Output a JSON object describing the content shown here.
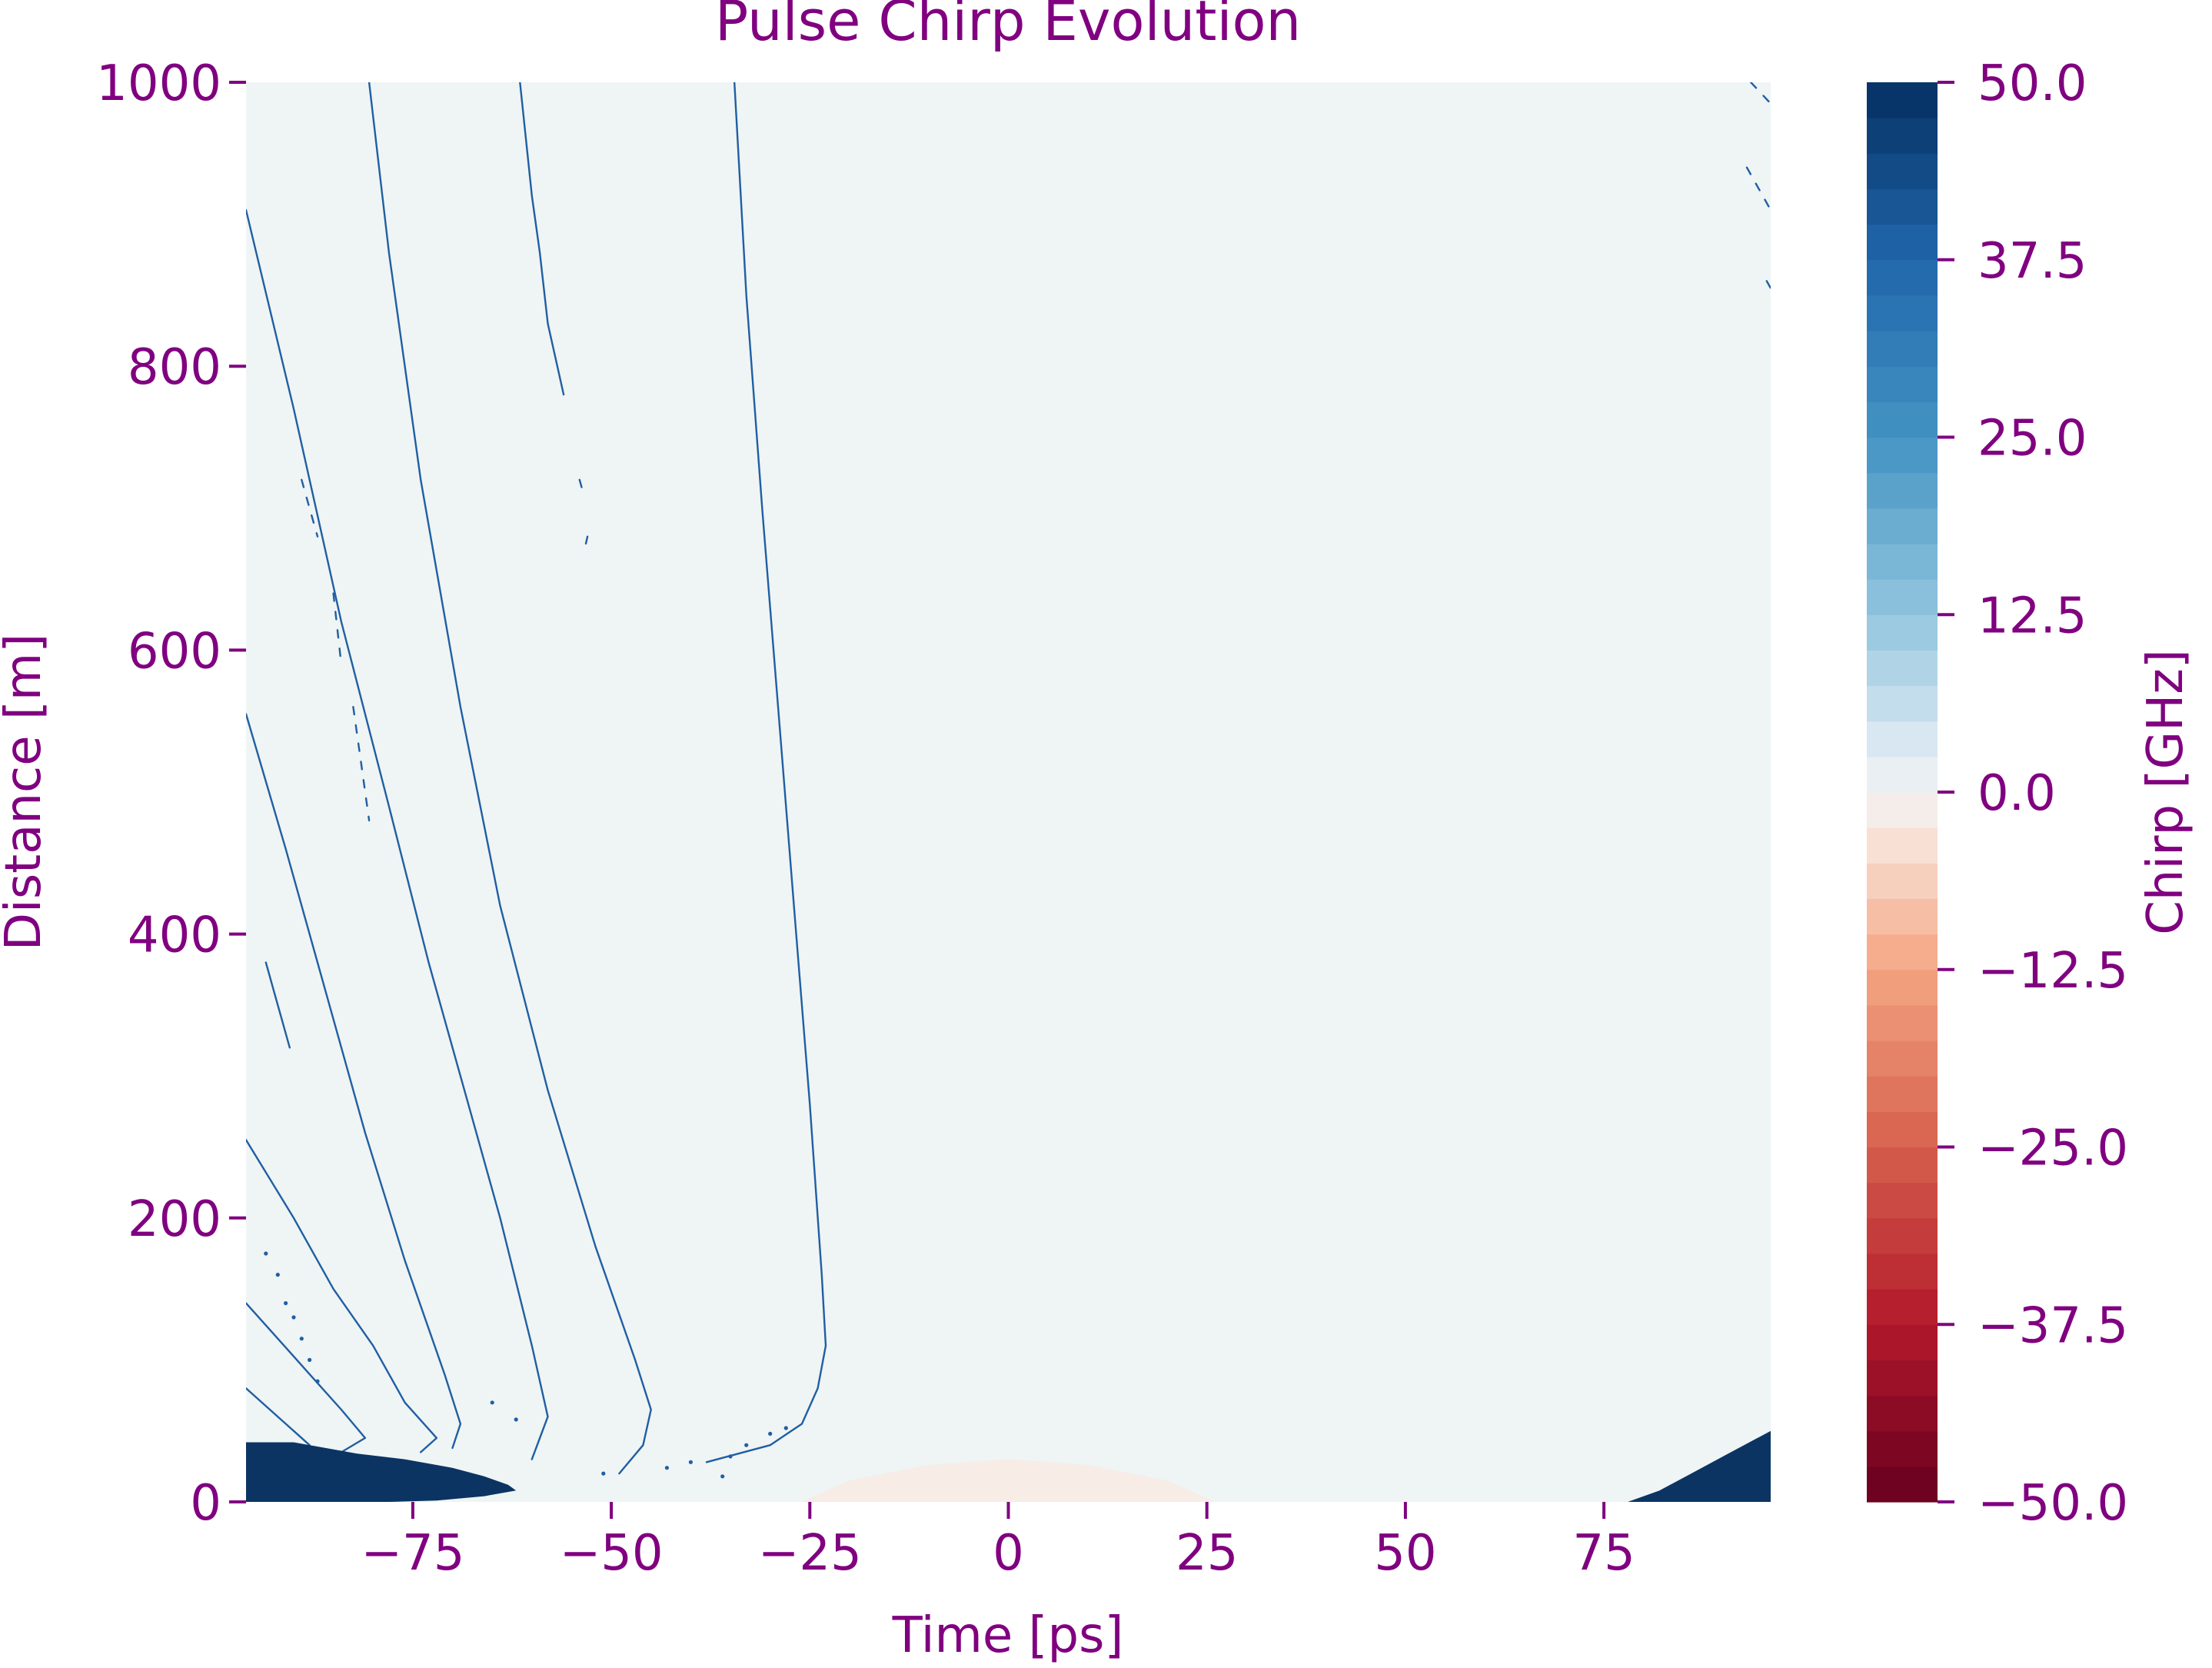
{
  "colors": {
    "text": "#800080",
    "background": "#eff4f4",
    "positive_dark": "#0b3463",
    "line": "#1f5fa3",
    "weak_negative": "#f7ebe4"
  },
  "chart_data": {
    "type": "heatmap",
    "title": "Pulse Chirp Evolution",
    "xlabel": "Time [ps]",
    "ylabel": "Distance [m]",
    "xlim": [
      -96,
      96
    ],
    "ylim": [
      0,
      1000
    ],
    "x_ticks": [
      -75,
      -50,
      -25,
      0,
      25,
      50,
      75
    ],
    "x_tick_labels": [
      "−75",
      "−50",
      "−25",
      "0",
      "25",
      "50",
      "75"
    ],
    "y_ticks": [
      0,
      200,
      400,
      600,
      800,
      1000
    ],
    "y_tick_labels": [
      "0",
      "200",
      "400",
      "600",
      "800",
      "1000"
    ],
    "colorbar": {
      "label": "Chirp [GHz]",
      "range": [
        -50,
        50
      ],
      "ticks": [
        50,
        37.5,
        25,
        12.5,
        0,
        -12.5,
        -25,
        -37.5,
        -50
      ],
      "tick_labels": [
        "50.0",
        "37.5",
        "25.0",
        "12.5",
        "0.0",
        "−12.5",
        "−25.0",
        "−37.5",
        "−50.0"
      ],
      "levels": 40,
      "colormap": "RdBu"
    },
    "ridges": [
      {
        "name": "ridge-1",
        "points": [
          [
            -96,
            910
          ],
          [
            -90,
            770
          ],
          [
            -84,
            620
          ],
          [
            -78,
            490
          ],
          [
            -73,
            380
          ],
          [
            -68,
            280
          ],
          [
            -64,
            200
          ],
          [
            -60,
            110
          ],
          [
            -58,
            60
          ],
          [
            -60,
            30
          ]
        ]
      },
      {
        "name": "ridge-2",
        "points": [
          [
            -80.5,
            1000
          ],
          [
            -78,
            880
          ],
          [
            -74,
            720
          ],
          [
            -69,
            560
          ],
          [
            -64,
            420
          ],
          [
            -58,
            290
          ],
          [
            -52,
            180
          ],
          [
            -47,
            100
          ],
          [
            -45,
            65
          ],
          [
            -46,
            40
          ],
          [
            -49,
            20
          ]
        ]
      },
      {
        "name": "ridge-3",
        "points": [
          [
            -34.5,
            1000
          ],
          [
            -33,
            850
          ],
          [
            -31,
            700
          ],
          [
            -29,
            560
          ],
          [
            -27,
            420
          ],
          [
            -25,
            280
          ],
          [
            -23.5,
            160
          ],
          [
            -23,
            110
          ],
          [
            -24,
            80
          ],
          [
            -26,
            55
          ],
          [
            -30,
            40
          ],
          [
            -38,
            28
          ]
        ]
      },
      {
        "name": "ridge-4",
        "points": [
          [
            -96,
            555
          ],
          [
            -91,
            460
          ],
          [
            -86,
            360
          ],
          [
            -81,
            260
          ],
          [
            -76,
            170
          ],
          [
            -71,
            90
          ],
          [
            -69,
            55
          ],
          [
            -70,
            38
          ]
        ]
      },
      {
        "name": "ridge-5",
        "points": [
          [
            -96,
            255
          ],
          [
            -90,
            200
          ],
          [
            -85,
            150
          ],
          [
            -80,
            110
          ],
          [
            -76,
            70
          ],
          [
            -72,
            45
          ],
          [
            -74,
            35
          ]
        ]
      },
      {
        "name": "ridge-6",
        "points": [
          [
            -96,
            140
          ],
          [
            -92,
            115
          ],
          [
            -88,
            90
          ],
          [
            -84,
            65
          ],
          [
            -81,
            45
          ],
          [
            -84,
            35
          ]
        ]
      },
      {
        "name": "ridge-7",
        "points": [
          [
            -61.5,
            1000
          ],
          [
            -60,
            920
          ],
          [
            -59,
            880
          ],
          [
            -58,
            830
          ],
          [
            -56,
            780
          ]
        ]
      },
      {
        "name": "ridge-8",
        "points": [
          [
            -96,
            80
          ],
          [
            -93,
            65
          ],
          [
            -90,
            50
          ],
          [
            -88,
            40
          ]
        ]
      },
      {
        "name": "ridge-9",
        "points": [
          [
            -93.5,
            380
          ],
          [
            -92.5,
            360
          ],
          [
            -91.5,
            340
          ],
          [
            -90.5,
            320
          ]
        ]
      }
    ],
    "dashed_segments": [
      {
        "name": "dash-left-1",
        "points": [
          [
            -89,
            720
          ],
          [
            -88,
            700
          ],
          [
            -87,
            680
          ]
        ]
      },
      {
        "name": "dash-left-2",
        "points": [
          [
            -85,
            640
          ],
          [
            -84,
            590
          ]
        ]
      },
      {
        "name": "dash-left-3",
        "points": [
          [
            -82.5,
            560
          ],
          [
            -81.5,
            520
          ],
          [
            -80.5,
            480
          ]
        ]
      },
      {
        "name": "dash-mid-1",
        "points": [
          [
            -54,
            720
          ],
          [
            -53.5,
            710
          ]
        ]
      },
      {
        "name": "dash-mid-2",
        "points": [
          [
            -53,
            680
          ],
          [
            -53.2,
            675
          ]
        ]
      },
      {
        "name": "dash-right-1",
        "points": [
          [
            93.5,
            1000
          ],
          [
            96,
            985
          ]
        ]
      },
      {
        "name": "dash-right-2",
        "points": [
          [
            93,
            940
          ],
          [
            96,
            910
          ]
        ]
      },
      {
        "name": "dash-right-3",
        "points": [
          [
            95.5,
            860
          ],
          [
            96,
            855
          ]
        ]
      }
    ],
    "blobs": [
      {
        "name": "blob-bottom-left",
        "value": 50,
        "points": [
          [
            -96,
            0
          ],
          [
            -96,
            42
          ],
          [
            -90,
            42
          ],
          [
            -82,
            34
          ],
          [
            -76,
            30
          ],
          [
            -70,
            24
          ],
          [
            -66,
            18
          ],
          [
            -63,
            12
          ],
          [
            -62,
            8
          ],
          [
            -66,
            4
          ],
          [
            -72,
            1
          ],
          [
            -78,
            0
          ]
        ]
      },
      {
        "name": "blob-bottom-right",
        "value": 50,
        "points": [
          [
            78,
            0
          ],
          [
            82,
            8
          ],
          [
            86,
            20
          ],
          [
            90,
            32
          ],
          [
            94,
            44
          ],
          [
            96,
            50
          ],
          [
            96,
            0
          ]
        ]
      }
    ],
    "negative_region": {
      "name": "weak-negative-dome",
      "value": -2.5,
      "points": [
        [
          -26,
          0
        ],
        [
          -20,
          15
        ],
        [
          -10,
          26
        ],
        [
          0,
          30
        ],
        [
          10,
          26
        ],
        [
          20,
          15
        ],
        [
          26,
          0
        ]
      ]
    },
    "dots": [
      [
        -93.5,
        175
      ],
      [
        -92,
        160
      ],
      [
        -91,
        140
      ],
      [
        -90,
        130
      ],
      [
        -89,
        115
      ],
      [
        -88,
        100
      ],
      [
        -87,
        85
      ],
      [
        -65,
        70
      ],
      [
        -62,
        58
      ],
      [
        -51,
        20
      ],
      [
        -40,
        28
      ],
      [
        -35,
        32
      ],
      [
        -33,
        40
      ],
      [
        -30,
        48
      ],
      [
        -28,
        52
      ],
      [
        -36,
        18
      ],
      [
        -43,
        24
      ]
    ]
  }
}
